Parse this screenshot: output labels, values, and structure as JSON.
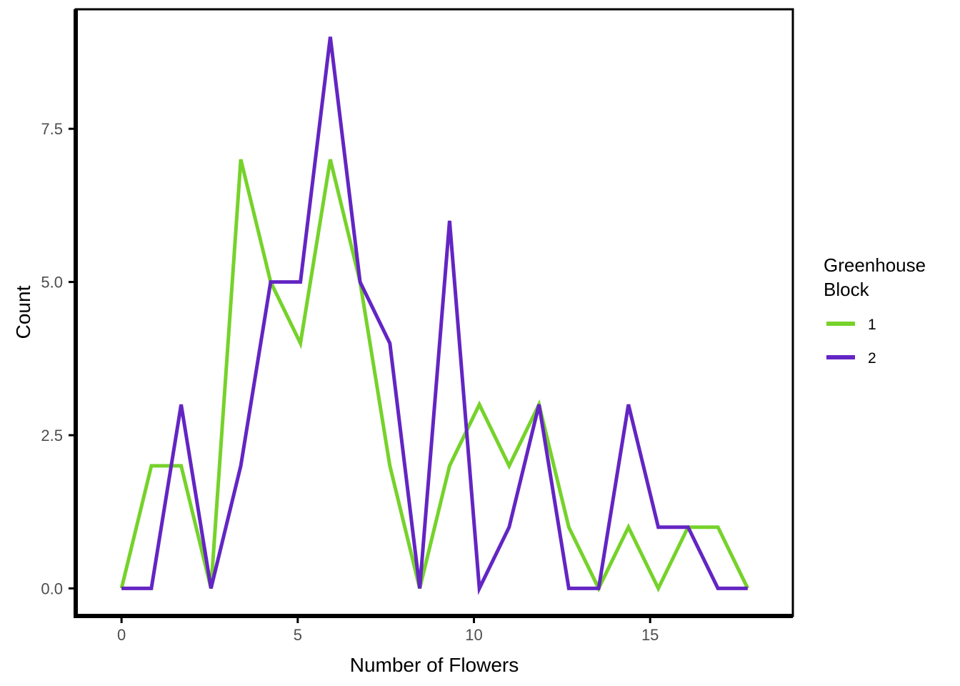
{
  "figure": {
    "background": "#ffffff",
    "panel_border_color": "#000000"
  },
  "chart_data": {
    "type": "line",
    "subtype": "frequency-polygon",
    "title": "",
    "xlabel": "Number of Flowers",
    "ylabel": "Count",
    "x": [
      0,
      0.846,
      1.692,
      2.538,
      3.385,
      4.231,
      5.077,
      5.923,
      6.769,
      7.615,
      8.462,
      9.308,
      10.154,
      11.0,
      11.846,
      12.692,
      13.538,
      14.385,
      15.231,
      16.077,
      16.923,
      17.769
    ],
    "series": [
      {
        "name": "1",
        "color": "#76D22B",
        "values": [
          0,
          2,
          2,
          0,
          7,
          5,
          4,
          7,
          5,
          2,
          0,
          2,
          3,
          2,
          3,
          1,
          0,
          1,
          0,
          1,
          1,
          0
        ]
      },
      {
        "name": "2",
        "color": "#6325C3",
        "values": [
          0,
          0,
          3,
          0,
          2,
          5,
          5,
          9,
          5,
          4,
          0,
          6,
          0,
          1,
          3,
          0,
          0,
          3,
          1,
          1,
          0,
          0
        ]
      }
    ],
    "x_ticks": {
      "values": [
        0,
        5,
        10,
        15
      ],
      "labels": [
        "0",
        "5",
        "10",
        "15"
      ]
    },
    "y_ticks": {
      "values": [
        0,
        2.5,
        5,
        7.5
      ],
      "labels": [
        "0.0",
        "2.5",
        "5.0",
        "7.5"
      ]
    },
    "xlim": [
      -1.3,
      19.05
    ],
    "ylim": [
      -0.45,
      9.45
    ],
    "grid": false,
    "line_width": 5,
    "legend": {
      "position": "right",
      "title": [
        "Greenhouse",
        "Block"
      ],
      "entries": [
        "1",
        "2"
      ]
    },
    "tick_label_color": "#4d4d4d",
    "axis_color": "#000000"
  }
}
